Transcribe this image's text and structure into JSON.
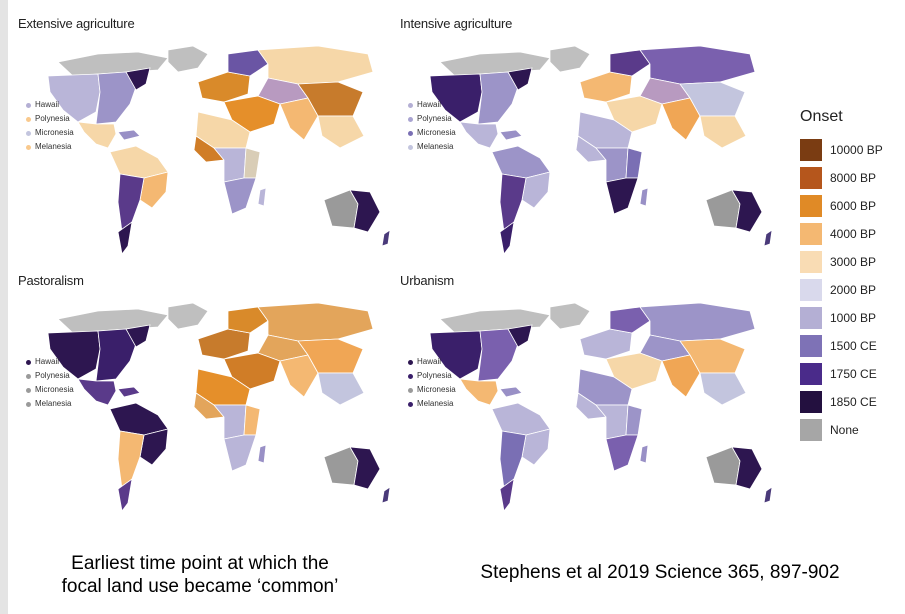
{
  "panels": [
    {
      "id": "extensive",
      "title": "Extensive agriculture",
      "pacific": [
        {
          "label": "Hawaii",
          "color": "#b4afd4"
        },
        {
          "label": "Polynesia",
          "color": "#f9c98d"
        },
        {
          "label": "Micronesia",
          "color": "#c3c5de"
        },
        {
          "label": "Melanesia",
          "color": "#f9c98d"
        }
      ],
      "regions": {
        "na_arctic": "#bfbfbf",
        "na_west": "#b9b5d8",
        "na_east": "#9c94c8",
        "na_ne": "#2d1650",
        "mexico": "#f6d7a8",
        "caribbean": "#9990c6",
        "sa_north": "#f6d7a8",
        "sa_east": "#f4b872",
        "sa_south": "#5a3a8a",
        "sa_tip": "#2d1650",
        "greenland": "#bfbfbf",
        "europe_w": "#d98a2a",
        "europe_n": "#6a55a4",
        "russia": "#f6d7a8",
        "middle_east": "#e58f2a",
        "central_asia": "#b89ac0",
        "india": "#f4b872",
        "china": "#c77b2c",
        "se_asia": "#f6d7a8",
        "sahara": "#f6d7a8",
        "west_africa": "#d07d27",
        "east_africa": "#d9cdb6",
        "central_africa": "#b9b5d8",
        "south_africa": "#9c94c8",
        "madagascar": "#b9b5d8",
        "aus_west": "#9a9a9a",
        "aus_east": "#2d1650",
        "nz": "#4a3a7a"
      }
    },
    {
      "id": "intensive",
      "title": "Intensive agriculture",
      "pacific": [
        {
          "label": "Hawaii",
          "color": "#b4afd4"
        },
        {
          "label": "Polynesia",
          "color": "#a9a4d1"
        },
        {
          "label": "Micronesia",
          "color": "#7a6fb4"
        },
        {
          "label": "Melanesia",
          "color": "#c3c5de"
        }
      ],
      "regions": {
        "na_arctic": "#bfbfbf",
        "na_west": "#3a1f6a",
        "na_east": "#9c94c8",
        "na_ne": "#2d1650",
        "mexico": "#b9b5d8",
        "caribbean": "#9990c6",
        "sa_north": "#9c94c8",
        "sa_east": "#b9b5d8",
        "sa_south": "#5a3a8a",
        "sa_tip": "#3a1f6a",
        "greenland": "#bfbfbf",
        "europe_w": "#f4b872",
        "europe_n": "#5a3a8a",
        "russia": "#7a60ae",
        "middle_east": "#f6d7a8",
        "central_asia": "#b89ac0",
        "india": "#f0a655",
        "china": "#c3c5de",
        "se_asia": "#f6d7a8",
        "sahara": "#b9b5d8",
        "west_africa": "#b9b5d8",
        "east_africa": "#7a6fb4",
        "central_africa": "#9c94c8",
        "south_africa": "#2d1650",
        "madagascar": "#9990c6",
        "aus_west": "#9a9a9a",
        "aus_east": "#2d1650",
        "nz": "#4a3a7a"
      }
    },
    {
      "id": "pastoralism",
      "title": "Pastoralism",
      "pacific": [
        {
          "label": "Hawaii",
          "color": "#2d1650"
        },
        {
          "label": "Polynesia",
          "color": "#9a9a9a"
        },
        {
          "label": "Micronesia",
          "color": "#9a9a9a"
        },
        {
          "label": "Melanesia",
          "color": "#9a9a9a"
        }
      ],
      "regions": {
        "na_arctic": "#bfbfbf",
        "na_west": "#2d1650",
        "na_east": "#3a1f6a",
        "na_ne": "#2d1650",
        "mexico": "#5a3a8a",
        "caribbean": "#5a3a8a",
        "sa_north": "#2d1650",
        "sa_east": "#2d1650",
        "sa_south": "#f4b872",
        "sa_tip": "#5a3a8a",
        "greenland": "#bfbfbf",
        "europe_w": "#c77b2c",
        "europe_n": "#d98a2a",
        "russia": "#e3a55b",
        "middle_east": "#d07d27",
        "central_asia": "#e3a55b",
        "india": "#f4b872",
        "china": "#f0a655",
        "se_asia": "#c3c5de",
        "sahara": "#e58f2a",
        "west_africa": "#e3a55b",
        "east_africa": "#f4b872",
        "central_africa": "#b9b5d8",
        "south_africa": "#b9b5d8",
        "madagascar": "#9990c6",
        "aus_west": "#9a9a9a",
        "aus_east": "#2d1650",
        "nz": "#4a3a7a"
      }
    },
    {
      "id": "urbanism",
      "title": "Urbanism",
      "pacific": [
        {
          "label": "Hawaii",
          "color": "#2d1650"
        },
        {
          "label": "Polynesia",
          "color": "#3a1f6a"
        },
        {
          "label": "Micronesia",
          "color": "#9a9a9a"
        },
        {
          "label": "Melanesia",
          "color": "#3a1f6a"
        }
      ],
      "regions": {
        "na_arctic": "#bfbfbf",
        "na_west": "#3a1f6a",
        "na_east": "#7a60ae",
        "na_ne": "#2d1650",
        "mexico": "#f4b872",
        "caribbean": "#9990c6",
        "sa_north": "#b9b5d8",
        "sa_east": "#b9b5d8",
        "sa_south": "#7a6fb4",
        "sa_tip": "#5a3a8a",
        "greenland": "#bfbfbf",
        "europe_w": "#b9b5d8",
        "europe_n": "#7a60ae",
        "russia": "#9c94c8",
        "middle_east": "#f6d7a8",
        "central_asia": "#9c94c8",
        "india": "#f0a655",
        "china": "#f4b872",
        "se_asia": "#c3c5de",
        "sahara": "#9c94c8",
        "west_africa": "#b9b5d8",
        "east_africa": "#9c94c8",
        "central_africa": "#b9b5d8",
        "south_africa": "#7a60ae",
        "madagascar": "#9990c6",
        "aus_west": "#9a9a9a",
        "aus_east": "#2d1650",
        "nz": "#4a3a7a"
      }
    }
  ],
  "legend": {
    "title": "Onset",
    "items": [
      {
        "label": "10000 BP",
        "color": "#7a3c12"
      },
      {
        "label": "8000 BP",
        "color": "#b5561c"
      },
      {
        "label": "6000 BP",
        "color": "#e08a26"
      },
      {
        "label": "4000 BP",
        "color": "#f4b872"
      },
      {
        "label": "3000 BP",
        "color": "#f9dcb4"
      },
      {
        "label": "2000 BP",
        "color": "#d9d9ec"
      },
      {
        "label": "1000 BP",
        "color": "#b4afd4"
      },
      {
        "label": "1500 CE",
        "color": "#7e72b6"
      },
      {
        "label": "1750 CE",
        "color": "#4a2b8a"
      },
      {
        "label": "1850 CE",
        "color": "#23103f"
      },
      {
        "label": "None",
        "color": "#a6a6a6"
      }
    ]
  },
  "caption": {
    "left_line1": "Earliest time point at which the",
    "left_line2": "focal land use became ‘common’",
    "right": "Stephens et al 2019 Science 365, 897-902"
  }
}
